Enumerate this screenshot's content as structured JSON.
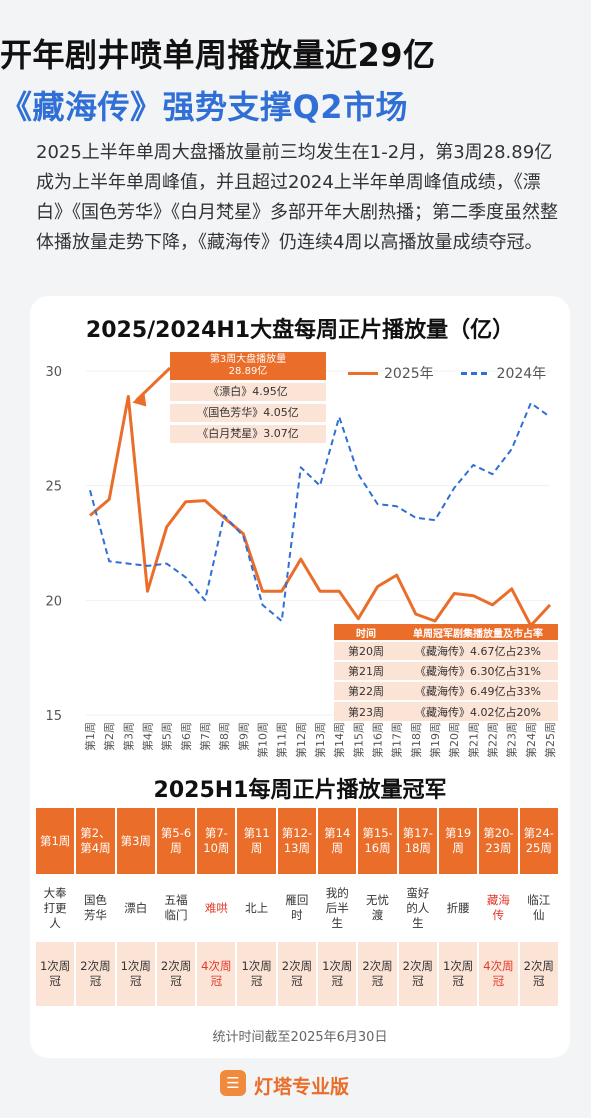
{
  "header": {
    "title_line1": "开年剧井喷单周播放量近29亿",
    "title_line2": "《藏海传》强势支撑Q2市场",
    "intro": "2025上半年单周大盘播放量前三均发生在1-2月，第3周28.89亿成为上半年单周峰值，并且超过2024上半年单周峰值成绩，《漂白》《国色芳华》《白月梵星》多部开年大剧热播；第二季度虽然整体播放量走势下降，《藏海传》仍连续4周以高播放量成绩夺冠。"
  },
  "chart_data": {
    "type": "line",
    "title": "2025/2024H1大盘每周正片播放量（亿）",
    "categories": [
      "第1周",
      "第2周",
      "第3周",
      "第4周",
      "第5周",
      "第6周",
      "第7周",
      "第8周",
      "第9周",
      "第10周",
      "第11周",
      "第12周",
      "第13周",
      "第14周",
      "第15周",
      "第16周",
      "第17周",
      "第18周",
      "第19周",
      "第20周",
      "第21周",
      "第22周",
      "第23周",
      "第24周",
      "第25周"
    ],
    "ylim": [
      15,
      30
    ],
    "yticks": [
      "15",
      "20",
      "25",
      "30"
    ],
    "series": [
      {
        "name": "2025年",
        "style": "solid",
        "color": "#ea6d2a",
        "values": [
          23.7,
          24.4,
          28.89,
          20.4,
          23.2,
          24.3,
          24.35,
          23.6,
          22.9,
          20.4,
          20.4,
          21.8,
          20.4,
          20.4,
          19.2,
          20.6,
          21.1,
          19.4,
          19.1,
          20.3,
          20.2,
          19.8,
          20.5,
          18.9,
          19.8
        ]
      },
      {
        "name": "2024年",
        "style": "dashed",
        "color": "#2f6fd6",
        "values": [
          24.8,
          21.7,
          21.6,
          21.5,
          21.6,
          21.0,
          20.0,
          23.7,
          22.8,
          19.8,
          19.1,
          25.8,
          25.0,
          28.0,
          25.5,
          24.2,
          24.1,
          23.6,
          23.5,
          24.9,
          25.9,
          25.5,
          26.6,
          28.6,
          28.0
        ]
      }
    ],
    "callout": {
      "header_line1": "第3周大盘播放量",
      "header_line2": "28.89亿",
      "rows": [
        "《漂白》4.95亿",
        "《国色芳华》4.05亿",
        "《白月梵星》3.07亿"
      ]
    },
    "rank_table": {
      "headers": [
        "时间",
        "单周冠军剧集播放量及市占率"
      ],
      "rows": [
        [
          "第20周",
          "《藏海传》4.67亿占23%"
        ],
        [
          "第21周",
          "《藏海传》6.30亿占31%"
        ],
        [
          "第22周",
          "《藏海传》6.49亿占33%"
        ],
        [
          "第23周",
          "《藏海传》4.02亿占20%"
        ]
      ]
    }
  },
  "champions": {
    "title": "2025H1每周正片播放量冠军",
    "weeks": [
      "第1周",
      "第2、第4周",
      "第3周",
      "第5-6周",
      "第7-10周",
      "第11周",
      "第12-13周",
      "第14周",
      "第15-16周",
      "第17-18周",
      "第19周",
      "第20-23周",
      "第24-25周"
    ],
    "shows": [
      "大奉打更人",
      "国色芳华",
      "漂白",
      "五福临门",
      "难哄",
      "北上",
      "雁回时",
      "我的后半生",
      "无忧渡",
      "蛮好的人生",
      "折腰",
      "藏海传",
      "临江仙"
    ],
    "counts": [
      "1次周冠",
      "2次周冠",
      "1次周冠",
      "2次周冠",
      "4次周冠",
      "1次周冠",
      "2次周冠",
      "1次周冠",
      "2次周冠",
      "2次周冠",
      "1次周冠",
      "4次周冠",
      "2次周冠"
    ],
    "highlight": [
      false,
      false,
      false,
      false,
      true,
      false,
      false,
      false,
      false,
      false,
      false,
      true,
      false
    ]
  },
  "footnote": "统计时间截至2025年6月30日",
  "brand": {
    "name": "灯塔专业版",
    "icon": "ticket-icon"
  }
}
